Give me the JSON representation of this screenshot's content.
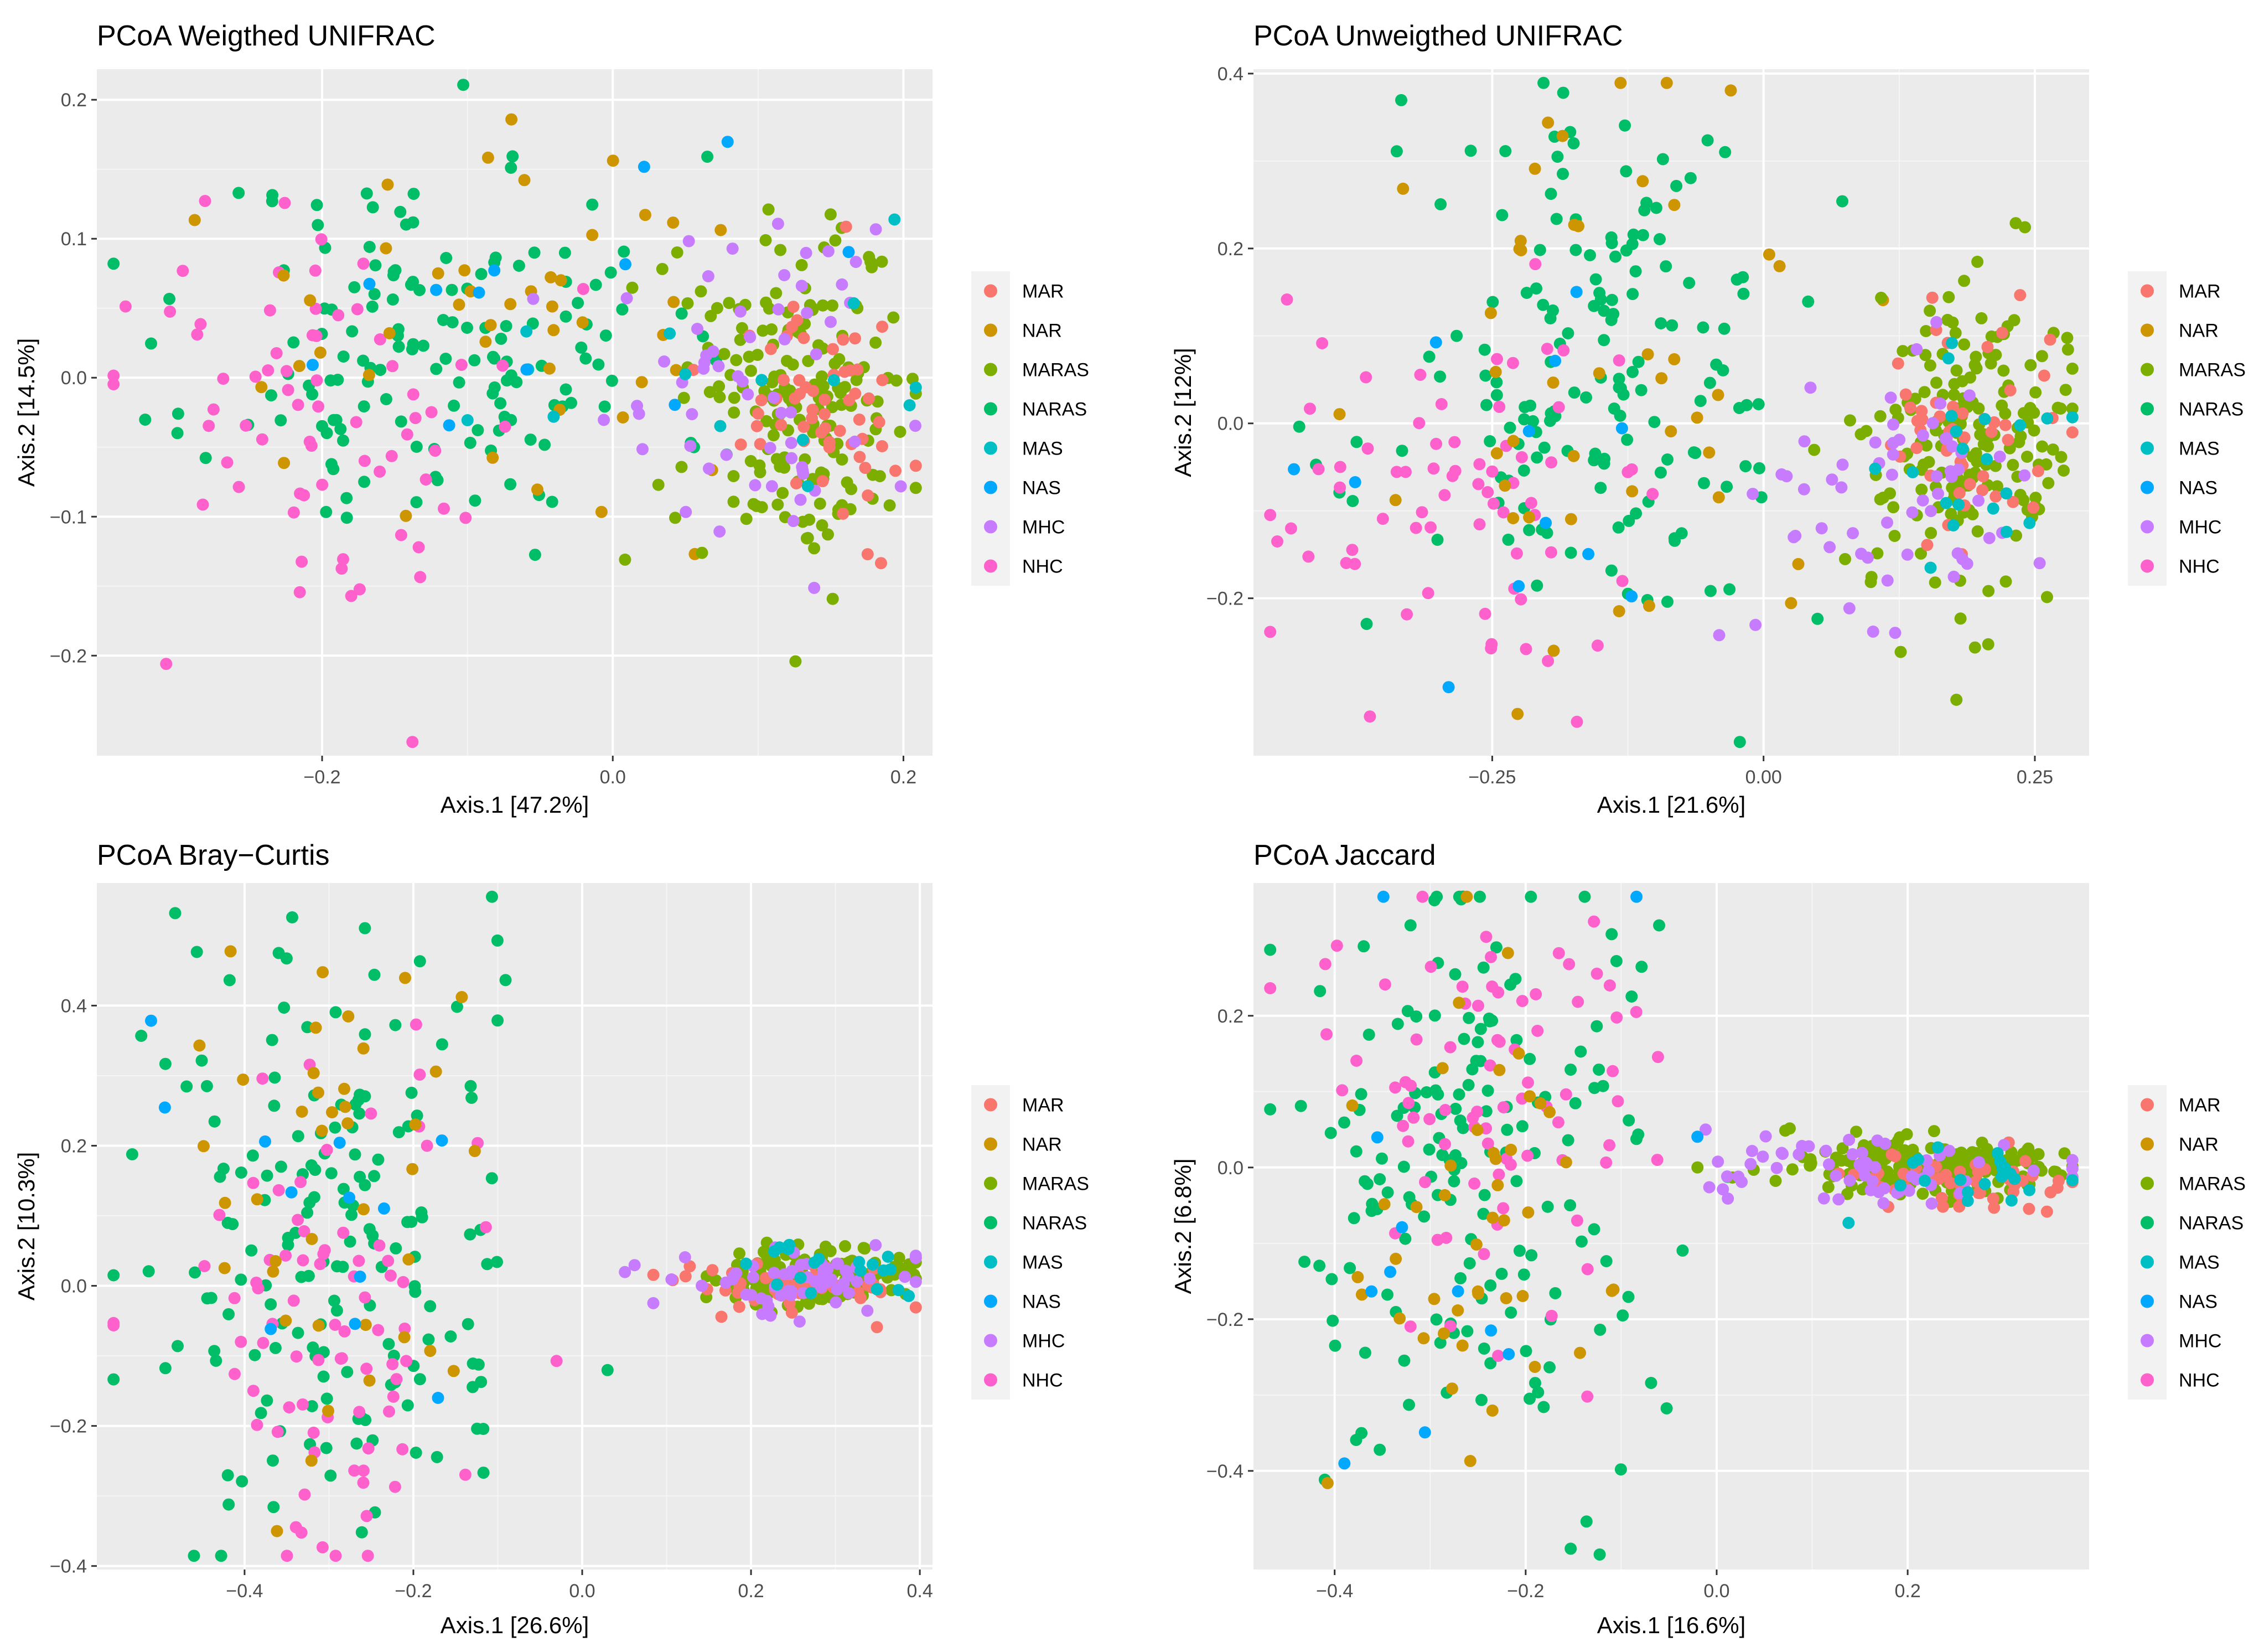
{
  "colors": {
    "MAR": "#F8766D",
    "NAR": "#CD9600",
    "MARAS": "#7CAE00",
    "NARAS": "#00BE67",
    "MAS": "#00BFC4",
    "NAS": "#00A9FF",
    "MHC": "#C77CFF",
    "NHC": "#FF61CC"
  },
  "chart_data": [
    {
      "type": "scatter",
      "title": "PCoA Weigthed UNIFRAC",
      "xlabel": "Axis.1   [47.2%]",
      "ylabel": "Axis.2   [14.5%]",
      "xlim": [
        -0.355,
        0.22
      ],
      "ylim": [
        -0.272,
        0.222
      ],
      "xticks": [
        {
          "v": -0.2,
          "label": "−0.2"
        },
        {
          "v": 0.0,
          "label": "0.0"
        },
        {
          "v": 0.2,
          "label": "0.2"
        }
      ],
      "yticks": [
        {
          "v": -0.2,
          "label": "−0.2"
        },
        {
          "v": -0.1,
          "label": "−0.1"
        },
        {
          "v": 0.0,
          "label": "0.0"
        },
        {
          "v": 0.1,
          "label": "0.1"
        },
        {
          "v": 0.2,
          "label": "0.2"
        }
      ],
      "legend": [
        "MAR",
        "NAR",
        "MARAS",
        "NARAS",
        "MAS",
        "NAS",
        "MHC",
        "NHC"
      ],
      "clusters": [
        {
          "g": "NARAS",
          "n": 150,
          "cx": -0.12,
          "cy": 0.02,
          "sx": 0.08,
          "sy": 0.07,
          "seed": 11
        },
        {
          "g": "NHC",
          "n": 70,
          "cx": -0.19,
          "cy": -0.03,
          "sx": 0.08,
          "sy": 0.08,
          "seed": 12
        },
        {
          "g": "NAR",
          "n": 45,
          "cx": -0.08,
          "cy": 0.04,
          "sx": 0.09,
          "sy": 0.07,
          "seed": 13
        },
        {
          "g": "MARAS",
          "n": 180,
          "cx": 0.13,
          "cy": -0.01,
          "sx": 0.04,
          "sy": 0.06,
          "seed": 14
        },
        {
          "g": "MAR",
          "n": 60,
          "cx": 0.15,
          "cy": -0.02,
          "sx": 0.03,
          "sy": 0.05,
          "seed": 15
        },
        {
          "g": "MHC",
          "n": 60,
          "cx": 0.1,
          "cy": 0.0,
          "sx": 0.05,
          "sy": 0.06,
          "seed": 16
        },
        {
          "g": "MAS",
          "n": 15,
          "cx": 0.08,
          "cy": 0.02,
          "sx": 0.1,
          "sy": 0.06,
          "seed": 17
        },
        {
          "g": "NAS",
          "n": 12,
          "cx": -0.1,
          "cy": 0.05,
          "sx": 0.1,
          "sy": 0.07,
          "seed": 18
        }
      ]
    },
    {
      "type": "scatter",
      "title": "PCoA Unweigthed UNIFRAC",
      "xlabel": "Axis.1   [21.6%]",
      "ylabel": "Axis.2   [12%]",
      "xlim": [
        -0.47,
        0.3
      ],
      "ylim": [
        -0.38,
        0.405
      ],
      "xticks": [
        {
          "v": -0.25,
          "label": "−0.25"
        },
        {
          "v": 0.0,
          "label": "0.00"
        },
        {
          "v": 0.25,
          "label": "0.25"
        }
      ],
      "yticks": [
        {
          "v": -0.2,
          "label": "−0.2"
        },
        {
          "v": 0.0,
          "label": "0.0"
        },
        {
          "v": 0.2,
          "label": "0.2"
        },
        {
          "v": 0.4,
          "label": "0.4"
        }
      ],
      "legend": [
        "MAR",
        "NAR",
        "MARAS",
        "NARAS",
        "MAS",
        "NAS",
        "MHC",
        "NHC"
      ],
      "clusters": [
        {
          "g": "NARAS",
          "n": 160,
          "cx": -0.15,
          "cy": 0.05,
          "sx": 0.09,
          "sy": 0.15,
          "seed": 21
        },
        {
          "g": "NHC",
          "n": 70,
          "cx": -0.3,
          "cy": -0.07,
          "sx": 0.08,
          "sy": 0.1,
          "seed": 22
        },
        {
          "g": "NAR",
          "n": 45,
          "cx": -0.12,
          "cy": 0.05,
          "sx": 0.1,
          "sy": 0.15,
          "seed": 23
        },
        {
          "g": "MARAS",
          "n": 180,
          "cx": 0.18,
          "cy": -0.02,
          "sx": 0.05,
          "sy": 0.1,
          "seed": 24
        },
        {
          "g": "MAR",
          "n": 50,
          "cx": 0.19,
          "cy": -0.02,
          "sx": 0.04,
          "sy": 0.06,
          "seed": 25
        },
        {
          "g": "MHC",
          "n": 60,
          "cx": 0.13,
          "cy": -0.06,
          "sx": 0.07,
          "sy": 0.09,
          "seed": 26
        },
        {
          "g": "MAS",
          "n": 20,
          "cx": 0.18,
          "cy": -0.03,
          "sx": 0.05,
          "sy": 0.08,
          "seed": 27
        },
        {
          "g": "NAS",
          "n": 12,
          "cx": -0.2,
          "cy": 0.0,
          "sx": 0.1,
          "sy": 0.15,
          "seed": 28
        }
      ]
    },
    {
      "type": "scatter",
      "title": "PCoA Bray−Curtis",
      "xlabel": "Axis.1   [26.6%]",
      "ylabel": "Axis.2   [10.3%]",
      "xlim": [
        -0.575,
        0.415
      ],
      "ylim": [
        -0.405,
        0.575
      ],
      "xticks": [
        {
          "v": -0.4,
          "label": "−0.4"
        },
        {
          "v": -0.2,
          "label": "−0.2"
        },
        {
          "v": 0.0,
          "label": "0.0"
        },
        {
          "v": 0.2,
          "label": "0.2"
        },
        {
          "v": 0.4,
          "label": "0.4"
        }
      ],
      "yticks": [
        {
          "v": -0.4,
          "label": "−0.4"
        },
        {
          "v": -0.2,
          "label": "−0.2"
        },
        {
          "v": 0.0,
          "label": "0.0"
        },
        {
          "v": 0.2,
          "label": "0.2"
        },
        {
          "v": 0.4,
          "label": "0.4"
        }
      ],
      "legend": [
        "MAR",
        "NAR",
        "MARAS",
        "NARAS",
        "MAS",
        "NAS",
        "MHC",
        "NHC"
      ],
      "clusters": [
        {
          "g": "NARAS",
          "n": 170,
          "cx": -0.3,
          "cy": 0.05,
          "sx": 0.12,
          "sy": 0.22,
          "seed": 31
        },
        {
          "g": "NHC",
          "n": 80,
          "cx": -0.3,
          "cy": -0.05,
          "sx": 0.1,
          "sy": 0.18,
          "seed": 32
        },
        {
          "g": "NAR",
          "n": 40,
          "cx": -0.3,
          "cy": 0.1,
          "sx": 0.08,
          "sy": 0.2,
          "seed": 33
        },
        {
          "g": "MARAS",
          "n": 190,
          "cx": 0.28,
          "cy": 0.01,
          "sx": 0.06,
          "sy": 0.02,
          "seed": 34
        },
        {
          "g": "MAR",
          "n": 50,
          "cx": 0.25,
          "cy": 0.0,
          "sx": 0.08,
          "sy": 0.02,
          "seed": 35
        },
        {
          "g": "MHC",
          "n": 60,
          "cx": 0.25,
          "cy": 0.01,
          "sx": 0.08,
          "sy": 0.025,
          "seed": 36
        },
        {
          "g": "MAS",
          "n": 20,
          "cx": 0.3,
          "cy": 0.02,
          "sx": 0.05,
          "sy": 0.02,
          "seed": 37
        },
        {
          "g": "NAS",
          "n": 12,
          "cx": -0.35,
          "cy": 0.1,
          "sx": 0.1,
          "sy": 0.2,
          "seed": 38
        }
      ]
    },
    {
      "type": "scatter",
      "title": "PCoA Jaccard",
      "xlabel": "Axis.1   [16.6%]",
      "ylabel": "Axis.2   [6.8%]",
      "xlim": [
        -0.485,
        0.39
      ],
      "ylim": [
        -0.53,
        0.375
      ],
      "xticks": [
        {
          "v": -0.4,
          "label": "−0.4"
        },
        {
          "v": -0.2,
          "label": "−0.2"
        },
        {
          "v": 0.0,
          "label": "0.0"
        },
        {
          "v": 0.2,
          "label": "0.2"
        }
      ],
      "yticks": [
        {
          "v": -0.4,
          "label": "−0.4"
        },
        {
          "v": -0.2,
          "label": "−0.2"
        },
        {
          "v": 0.0,
          "label": "0.0"
        },
        {
          "v": 0.2,
          "label": "0.2"
        }
      ],
      "legend": [
        "MAR",
        "NAR",
        "MARAS",
        "NARAS",
        "MAS",
        "NAS",
        "MHC",
        "NHC"
      ],
      "clusters": [
        {
          "g": "NARAS",
          "n": 170,
          "cx": -0.25,
          "cy": 0.0,
          "sx": 0.1,
          "sy": 0.2,
          "seed": 41
        },
        {
          "g": "NHC",
          "n": 80,
          "cx": -0.25,
          "cy": 0.1,
          "sx": 0.1,
          "sy": 0.15,
          "seed": 42
        },
        {
          "g": "NAR",
          "n": 45,
          "cx": -0.28,
          "cy": -0.05,
          "sx": 0.08,
          "sy": 0.2,
          "seed": 43
        },
        {
          "g": "MARAS",
          "n": 190,
          "cx": 0.22,
          "cy": 0.0,
          "sx": 0.08,
          "sy": 0.02,
          "seed": 44
        },
        {
          "g": "MAR",
          "n": 50,
          "cx": 0.25,
          "cy": -0.02,
          "sx": 0.06,
          "sy": 0.02,
          "seed": 45
        },
        {
          "g": "MHC",
          "n": 60,
          "cx": 0.15,
          "cy": 0.0,
          "sx": 0.1,
          "sy": 0.025,
          "seed": 46
        },
        {
          "g": "MAS",
          "n": 20,
          "cx": 0.25,
          "cy": -0.01,
          "sx": 0.07,
          "sy": 0.02,
          "seed": 47
        },
        {
          "g": "NAS",
          "n": 12,
          "cx": -0.25,
          "cy": 0.0,
          "sx": 0.1,
          "sy": 0.2,
          "seed": 48
        }
      ]
    }
  ]
}
